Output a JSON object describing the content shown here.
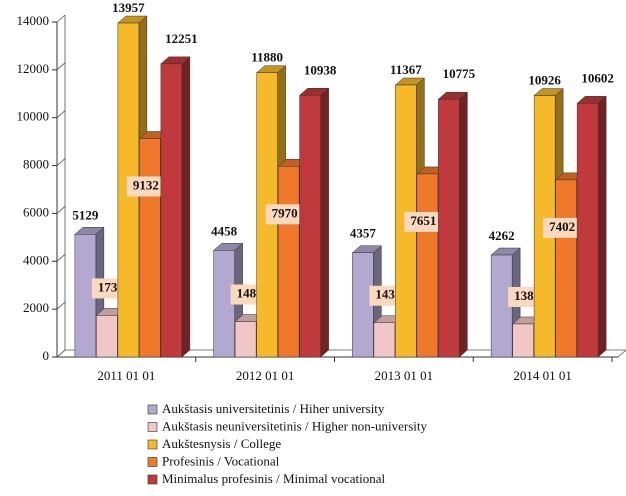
{
  "chart_data": {
    "type": "bar3d",
    "categories": [
      "2011 01 01",
      "2012 01 01",
      "2013 01 01",
      "2014 01 01"
    ],
    "series": [
      {
        "name": "Aukštasis universitetinis / Hiher university",
        "color": "#b3a9d0",
        "values": [
          5129,
          4458,
          4357,
          4262
        ]
      },
      {
        "name": "Aukštasis neuniversitetinis / Higher non-university",
        "color": "#f0c6c6",
        "values": [
          1739,
          1482,
          1431,
          1381
        ]
      },
      {
        "name": "Aukštesnysis / College",
        "color": "#f5b92a",
        "values": [
          13957,
          11880,
          11367,
          10926
        ]
      },
      {
        "name": "Profesinis / Vocational",
        "color": "#f0782a",
        "values": [
          9132,
          7970,
          7651,
          7402
        ]
      },
      {
        "name": "Minimalus profesinis / Minimal vocational",
        "color": "#c0393c",
        "values": [
          12251,
          10938,
          10775,
          10602
        ]
      }
    ],
    "ylim": [
      0,
      14000
    ],
    "yticks": [
      0,
      2000,
      4000,
      6000,
      8000,
      10000,
      12000,
      14000
    ]
  }
}
